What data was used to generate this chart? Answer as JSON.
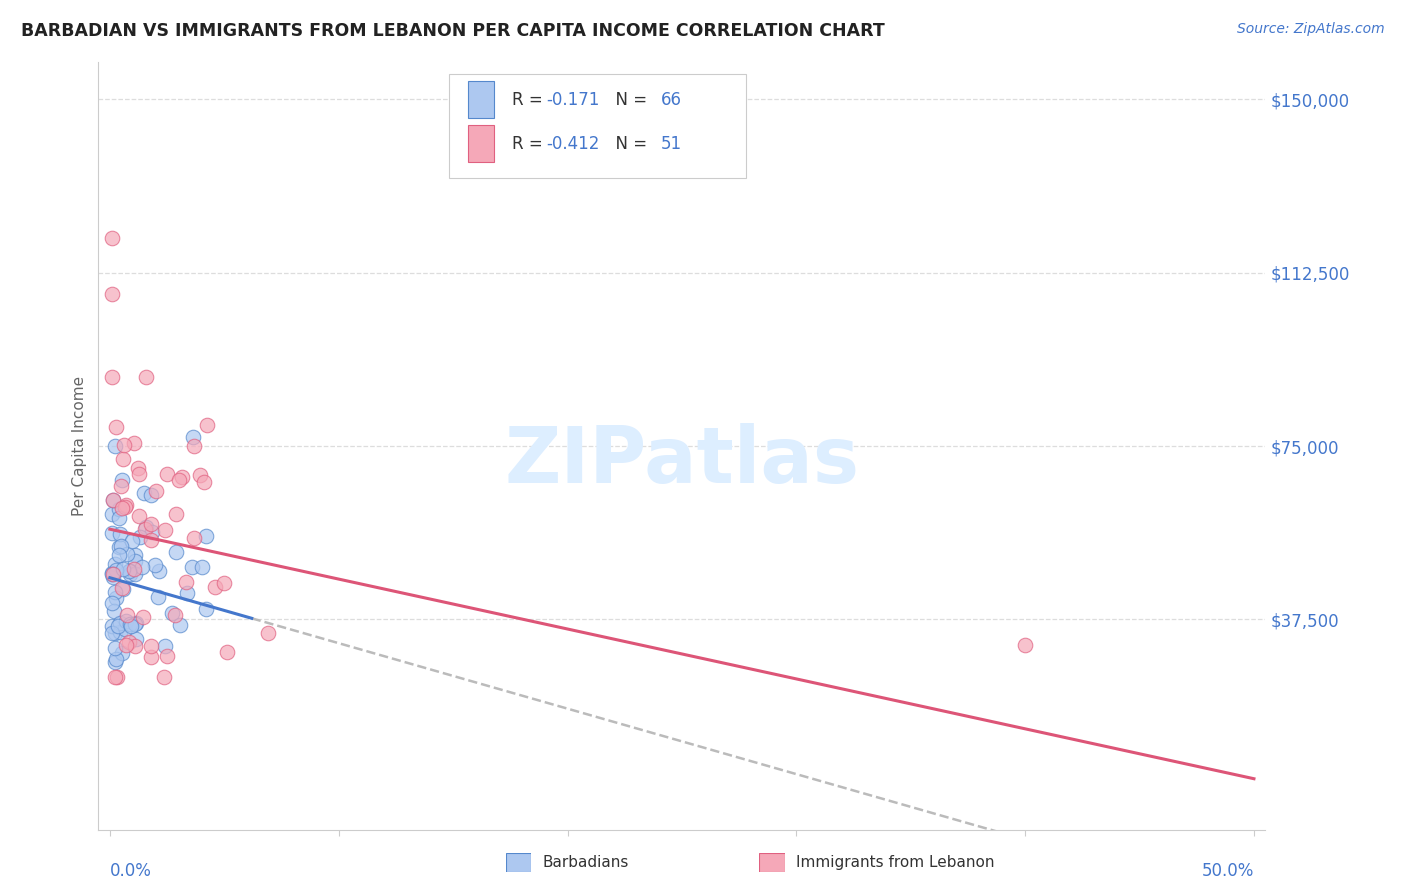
{
  "title": "BARBADIAN VS IMMIGRANTS FROM LEBANON PER CAPITA INCOME CORRELATION CHART",
  "source": "Source: ZipAtlas.com",
  "ylabel": "Per Capita Income",
  "ylim": [
    0,
    150000
  ],
  "xlim": [
    0.0,
    0.5
  ],
  "ytick_vals": [
    0,
    37500,
    75000,
    112500,
    150000
  ],
  "ytick_labels": [
    "",
    "$37,500",
    "$75,000",
    "$112,500",
    "$150,000"
  ],
  "legend_r_blue": "-0.171",
  "legend_n_blue": "66",
  "legend_r_pink": "-0.412",
  "legend_n_pink": "51",
  "blue_fill": "#adc8f0",
  "blue_edge": "#5588cc",
  "pink_fill": "#f5a8b8",
  "pink_edge": "#e06080",
  "blue_line_color": "#4477cc",
  "pink_line_color": "#dd5577",
  "dash_color": "#bbbbbb",
  "grid_color": "#dddddd",
  "title_color": "#222222",
  "source_color": "#4477cc",
  "ytick_color": "#4477cc",
  "xtick_color": "#4477cc",
  "ylabel_color": "#666666",
  "watermark_color": "#ddeeff",
  "legend_label_color": "#333333",
  "legend_value_color": "#4477cc",
  "bottom_legend_color": "#333333"
}
